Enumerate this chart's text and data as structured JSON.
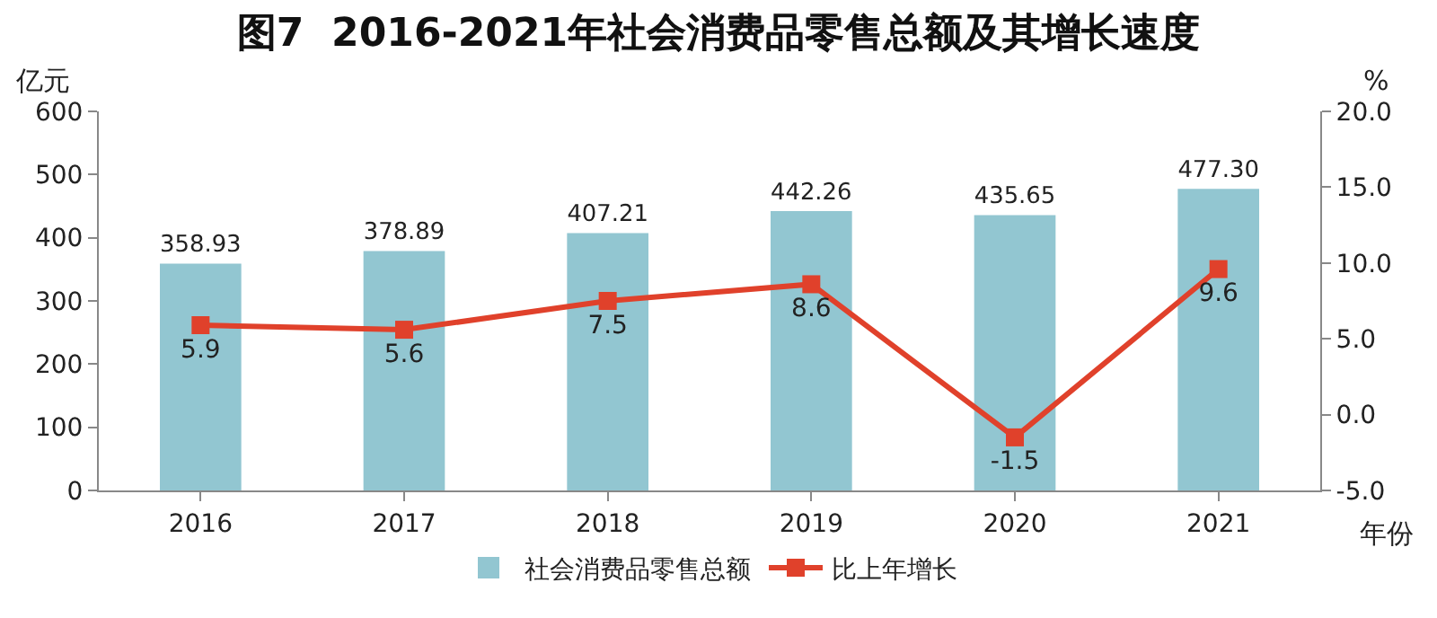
{
  "chart_data": {
    "type": "bar",
    "title": "图7  2016-2021年社会消费品零售总额及其增长速度",
    "ylabel": "亿元",
    "y2label": "%",
    "xlabel": "年份",
    "categories": [
      "2016",
      "2017",
      "2018",
      "2019",
      "2020",
      "2021"
    ],
    "series": [
      {
        "name": "社会消费品零售总额",
        "color": "#92c6d1",
        "values": [
          358.93,
          378.89,
          407.21,
          442.26,
          435.65,
          477.3
        ],
        "value_labels": [
          "358.93",
          "378.89",
          "407.21",
          "442.26",
          "435.65",
          "477.30"
        ]
      },
      {
        "name": "比上年增长",
        "type": "line",
        "axis": "y2",
        "color": "#e0412b",
        "values": [
          5.9,
          5.6,
          7.5,
          8.6,
          -1.5,
          9.6
        ],
        "value_labels": [
          "5.9",
          "5.6",
          "7.5",
          "8.6",
          "-1.5",
          "9.6"
        ]
      }
    ],
    "marker": "square",
    "legend": "bottom",
    "ylim": [
      0,
      600
    ],
    "yticks": [
      0,
      100,
      200,
      300,
      400,
      500,
      600
    ],
    "y2lim": [
      -5,
      20
    ],
    "y2ticks": [
      {
        "value": -5,
        "label": "-5.0"
      },
      {
        "value": 0,
        "label": "0.0"
      },
      {
        "value": 5,
        "label": "5.0"
      },
      {
        "value": 10,
        "label": "10.0"
      },
      {
        "value": 15,
        "label": "15.0"
      },
      {
        "value": 20,
        "label": "20.0"
      }
    ]
  }
}
